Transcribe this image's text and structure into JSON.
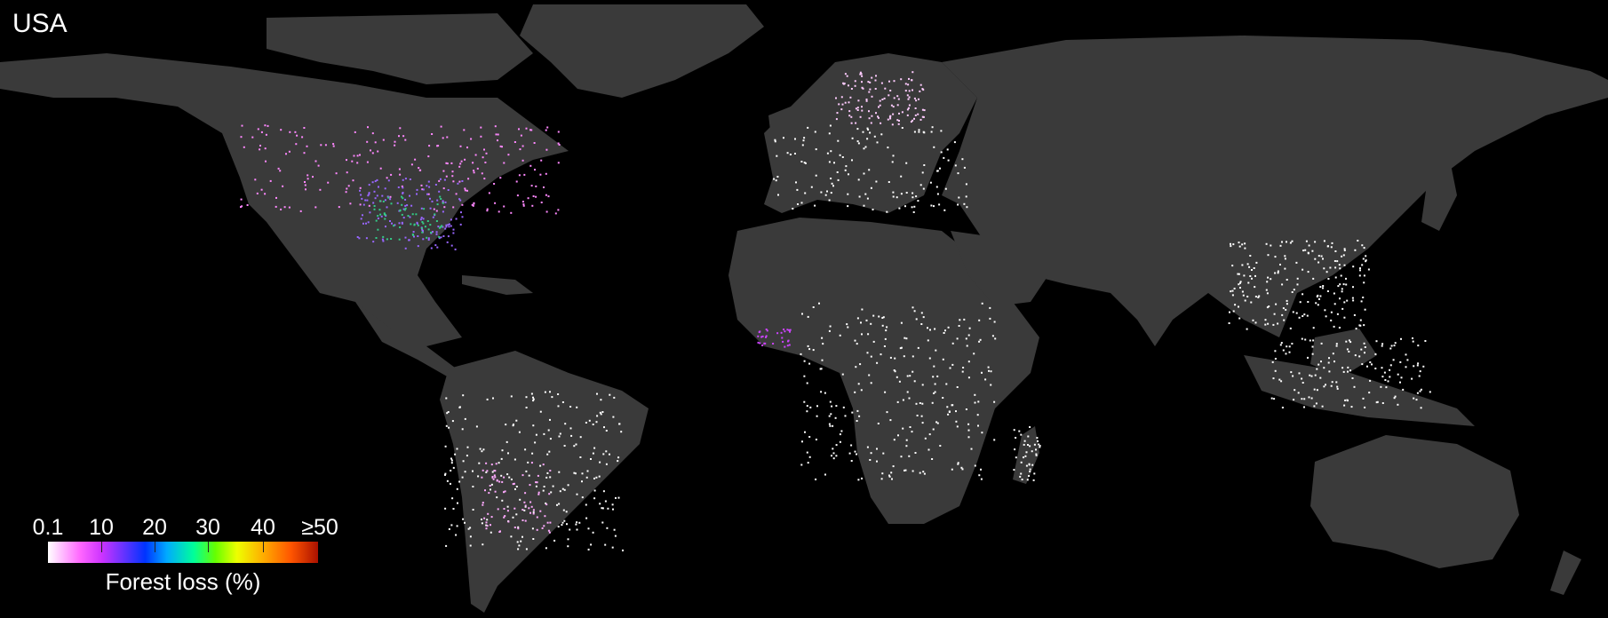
{
  "map": {
    "region_label": "USA",
    "background_color": "#000000",
    "land_color": "#3a3a3a",
    "loss_low_color": "#ffffff",
    "loss_pink_color": "#ff99ff"
  },
  "legend": {
    "ticks": [
      "0.1",
      "10",
      "20",
      "30",
      "40",
      "≥50"
    ],
    "title": "Forest loss (%)"
  }
}
